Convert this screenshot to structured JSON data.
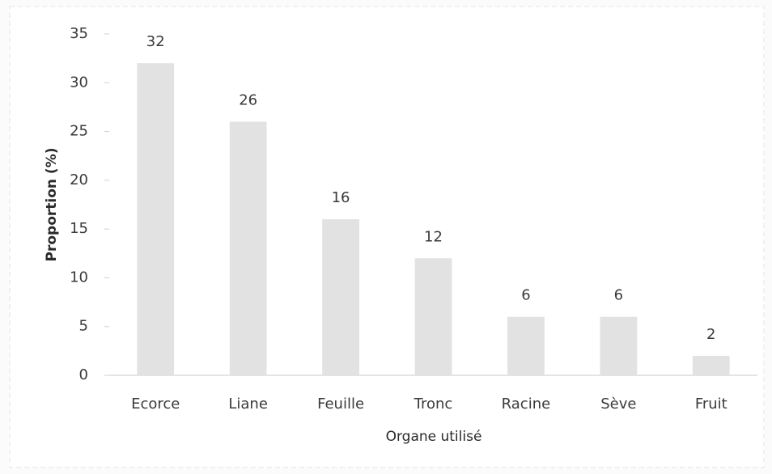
{
  "chart_data": {
    "type": "bar",
    "categories": [
      "Ecorce",
      "Liane",
      "Feuille",
      "Tronc",
      "Racine",
      "Sève",
      "Fruit"
    ],
    "values": [
      32,
      26,
      16,
      12,
      6,
      6,
      2
    ],
    "color": "#e2e2e2",
    "x_label": "Organe utilisé",
    "y_label": "Proportion (%)",
    "ylim": [
      0,
      35
    ],
    "yticks": [
      0,
      5,
      10,
      15,
      20,
      25,
      30,
      35
    ],
    "grid": false
  }
}
